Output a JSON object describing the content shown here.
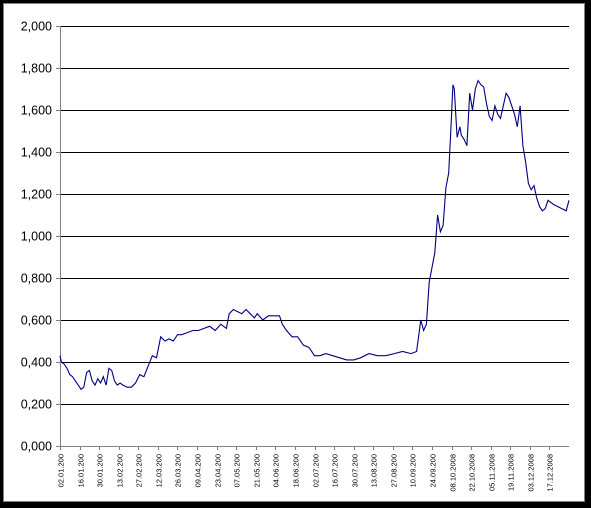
{
  "chart_data": {
    "type": "line",
    "title": "",
    "xlabel": "",
    "ylabel": "",
    "ylim": [
      0,
      2
    ],
    "yticks": [
      0,
      0.2,
      0.4,
      0.6,
      0.8,
      1.0,
      1.2,
      1.4,
      1.6,
      1.8,
      2.0
    ],
    "ytick_labels": [
      "0,000",
      "0,200",
      "0,400",
      "0,600",
      "0,800",
      "1,000",
      "1,200",
      "1,400",
      "1,600",
      "1,800",
      "2,000"
    ],
    "xlim": [
      "2008-01-02",
      "2008-12-31"
    ],
    "xtick_dates": [
      "2008-01-02",
      "2008-01-16",
      "2008-01-30",
      "2008-02-13",
      "2008-02-27",
      "2008-03-12",
      "2008-03-26",
      "2008-04-09",
      "2008-04-23",
      "2008-05-07",
      "2008-05-21",
      "2008-06-04",
      "2008-06-18",
      "2008-07-02",
      "2008-07-16",
      "2008-07-30",
      "2008-08-13",
      "2008-08-27",
      "2008-09-10",
      "2008-09-24",
      "2008-10-08",
      "2008-10-22",
      "2008-11-05",
      "2008-11-19",
      "2008-12-03",
      "2008-12-17"
    ],
    "xtick_labels": [
      "02.01.200",
      "16.01.200",
      "30.01.200",
      "13.02.200",
      "27.02.200",
      "12.03.200",
      "26.03.200",
      "09.04.200",
      "23.04.200",
      "07.05.200",
      "21.05.200",
      "04.06.200",
      "18.06.200",
      "02.07.200",
      "16.07.200",
      "30.07.200",
      "13.08.200",
      "27.08.200",
      "10.09.200",
      "24.09.200",
      "08.10.2008",
      "22.10.2008",
      "05.11.2008",
      "19.11.2008",
      "03.12.2008",
      "17.12.2008"
    ],
    "grid": true,
    "legend": "none",
    "series": [
      {
        "color": "#000080",
        "x": [
          "2008-01-02",
          "2008-01-03",
          "2008-01-05",
          "2008-01-07",
          "2008-01-09",
          "2008-01-11",
          "2008-01-13",
          "2008-01-15",
          "2008-01-17",
          "2008-01-19",
          "2008-01-21",
          "2008-01-23",
          "2008-01-25",
          "2008-01-27",
          "2008-01-29",
          "2008-01-31",
          "2008-02-02",
          "2008-02-04",
          "2008-02-06",
          "2008-02-08",
          "2008-02-10",
          "2008-02-12",
          "2008-02-14",
          "2008-02-16",
          "2008-02-19",
          "2008-02-22",
          "2008-02-25",
          "2008-02-28",
          "2008-03-02",
          "2008-03-05",
          "2008-03-08",
          "2008-03-11",
          "2008-03-14",
          "2008-03-17",
          "2008-03-20",
          "2008-03-23",
          "2008-03-26",
          "2008-03-29",
          "2008-04-02",
          "2008-04-06",
          "2008-04-10",
          "2008-04-14",
          "2008-04-18",
          "2008-04-22",
          "2008-04-26",
          "2008-04-30",
          "2008-05-02",
          "2008-05-05",
          "2008-05-08",
          "2008-05-11",
          "2008-05-14",
          "2008-05-17",
          "2008-05-20",
          "2008-05-22",
          "2008-05-26",
          "2008-05-30",
          "2008-06-03",
          "2008-06-07",
          "2008-06-09",
          "2008-06-12",
          "2008-06-16",
          "2008-06-20",
          "2008-06-24",
          "2008-06-28",
          "2008-07-02",
          "2008-07-06",
          "2008-07-10",
          "2008-07-15",
          "2008-07-20",
          "2008-07-25",
          "2008-07-30",
          "2008-08-04",
          "2008-08-10",
          "2008-08-16",
          "2008-08-22",
          "2008-08-28",
          "2008-09-03",
          "2008-09-09",
          "2008-09-13",
          "2008-09-16",
          "2008-09-18",
          "2008-09-20",
          "2008-09-22",
          "2008-09-24",
          "2008-09-26",
          "2008-09-28",
          "2008-09-30",
          "2008-10-02",
          "2008-10-04",
          "2008-10-06",
          "2008-10-08",
          "2008-10-09",
          "2008-10-10",
          "2008-10-12",
          "2008-10-14",
          "2008-10-15",
          "2008-10-17",
          "2008-10-19",
          "2008-10-21",
          "2008-10-23",
          "2008-10-25",
          "2008-10-27",
          "2008-10-29",
          "2008-10-31",
          "2008-11-02",
          "2008-11-04",
          "2008-11-06",
          "2008-11-08",
          "2008-11-10",
          "2008-11-12",
          "2008-11-14",
          "2008-11-16",
          "2008-11-18",
          "2008-11-20",
          "2008-11-22",
          "2008-11-24",
          "2008-11-26",
          "2008-11-28",
          "2008-11-30",
          "2008-12-02",
          "2008-12-04",
          "2008-12-06",
          "2008-12-08",
          "2008-12-10",
          "2008-12-12",
          "2008-12-14",
          "2008-12-16",
          "2008-12-18",
          "2008-12-20",
          "2008-12-23",
          "2008-12-26",
          "2008-12-29",
          "2008-12-31"
        ],
        "values": [
          0.43,
          0.4,
          0.39,
          0.37,
          0.34,
          0.33,
          0.31,
          0.29,
          0.27,
          0.28,
          0.35,
          0.36,
          0.31,
          0.29,
          0.32,
          0.3,
          0.33,
          0.29,
          0.37,
          0.36,
          0.31,
          0.29,
          0.3,
          0.29,
          0.28,
          0.28,
          0.3,
          0.34,
          0.33,
          0.38,
          0.43,
          0.42,
          0.52,
          0.5,
          0.51,
          0.5,
          0.53,
          0.53,
          0.54,
          0.55,
          0.55,
          0.56,
          0.57,
          0.55,
          0.58,
          0.56,
          0.63,
          0.65,
          0.64,
          0.63,
          0.65,
          0.63,
          0.61,
          0.63,
          0.6,
          0.62,
          0.62,
          0.62,
          0.58,
          0.55,
          0.52,
          0.52,
          0.48,
          0.47,
          0.43,
          0.43,
          0.44,
          0.43,
          0.42,
          0.41,
          0.41,
          0.42,
          0.44,
          0.43,
          0.43,
          0.44,
          0.45,
          0.44,
          0.45,
          0.6,
          0.55,
          0.58,
          0.78,
          0.85,
          0.92,
          1.1,
          1.02,
          1.05,
          1.23,
          1.3,
          1.57,
          1.72,
          1.7,
          1.47,
          1.52,
          1.48,
          1.46,
          1.43,
          1.68,
          1.6,
          1.7,
          1.74,
          1.72,
          1.71,
          1.63,
          1.57,
          1.55,
          1.62,
          1.58,
          1.56,
          1.62,
          1.68,
          1.66,
          1.62,
          1.58,
          1.52,
          1.62,
          1.43,
          1.35,
          1.25,
          1.22,
          1.24,
          1.18,
          1.14,
          1.12,
          1.13,
          1.17,
          1.16,
          1.15,
          1.14,
          1.13,
          1.12,
          1.17
        ]
      }
    ]
  }
}
